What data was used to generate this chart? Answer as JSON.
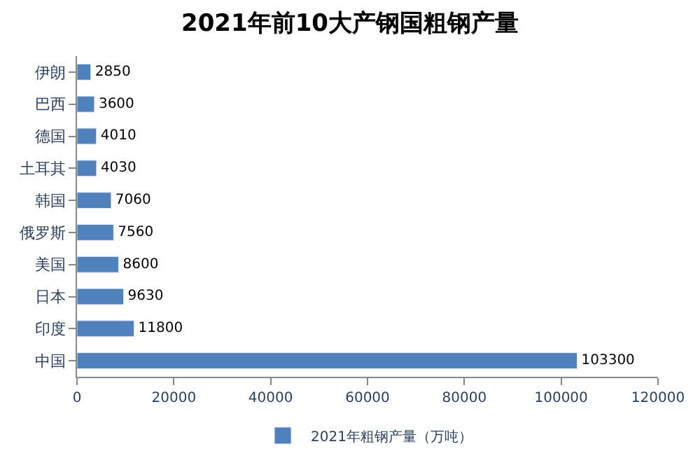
{
  "chart_data": {
    "type": "bar",
    "orientation": "horizontal",
    "title": "2021年前10大产钢国粗钢产量",
    "categories": [
      "伊朗",
      "巴西",
      "德国",
      "土耳其",
      "韩国",
      "俄罗斯",
      "美国",
      "日本",
      "印度",
      "中国"
    ],
    "series": [
      {
        "name": "2021年粗钢产量（万吨）",
        "color": "#4f81bd",
        "values": [
          2850,
          3600,
          4010,
          4030,
          7060,
          7560,
          8600,
          9630,
          11800,
          103300
        ]
      }
    ],
    "xlim": [
      0,
      120000
    ],
    "xticks": [
      0,
      20000,
      40000,
      60000,
      80000,
      100000,
      120000
    ],
    "data_labels": true,
    "legend": "bottom",
    "grid": false
  }
}
